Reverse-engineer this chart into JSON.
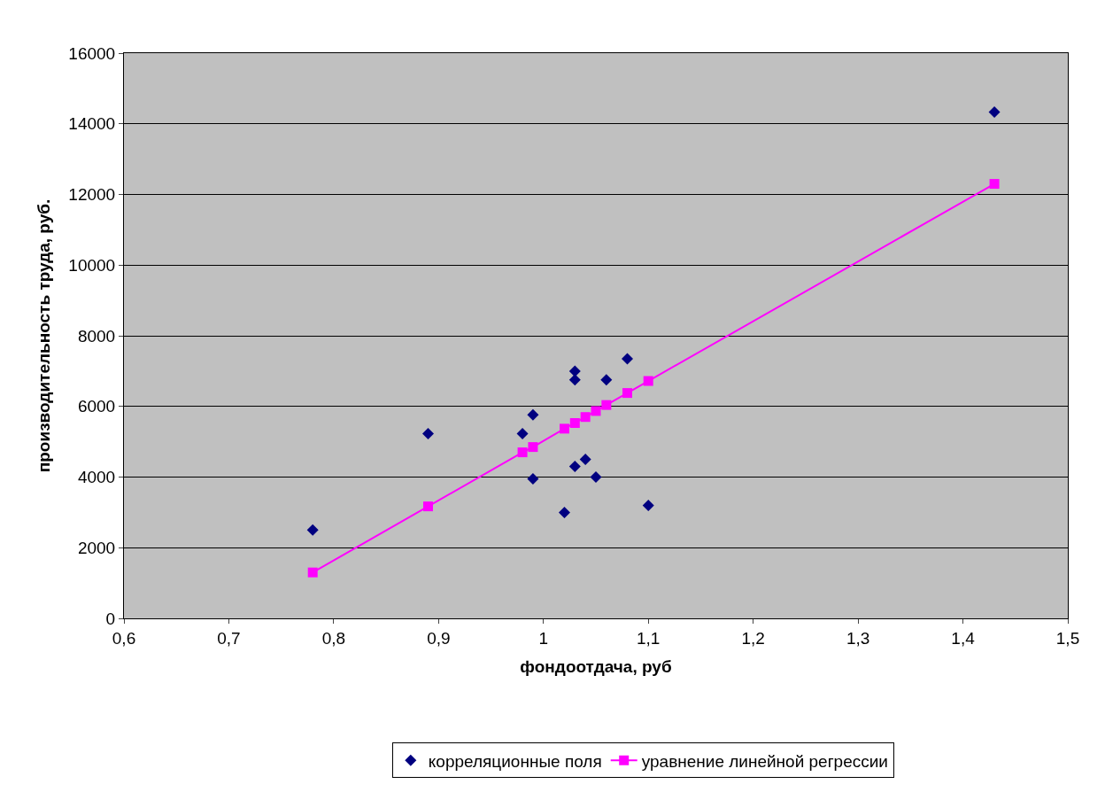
{
  "chart_data": {
    "type": "scatter",
    "xlabel": "фондоотдача, руб",
    "ylabel": "производительность труда, руб.",
    "x": [
      0.78,
      0.89,
      0.98,
      0.99,
      0.99,
      1.02,
      1.03,
      1.03,
      1.03,
      1.04,
      1.05,
      1.06,
      1.08,
      1.1,
      1.43
    ],
    "series": [
      {
        "name": "корреляционные поля",
        "type": "scatter",
        "marker": "diamond",
        "color": "#000080",
        "values": [
          2500,
          5230,
          5230,
          5760,
          3950,
          3000,
          7000,
          6750,
          4300,
          4500,
          4000,
          6750,
          7350,
          3200,
          14330
        ]
      },
      {
        "name": "уравнение линейной регрессии",
        "type": "line",
        "marker": "square",
        "line_style": "solid",
        "color": "#ff00ff",
        "x": [
          0.78,
          0.89,
          0.98,
          0.99,
          1.02,
          1.03,
          1.04,
          1.05,
          1.06,
          1.08,
          1.1,
          1.43
        ],
        "values": [
          1300,
          3170,
          4700,
          4850,
          5370,
          5530,
          5700,
          5870,
          6040,
          6380,
          6720,
          12300
        ]
      }
    ],
    "xlim": [
      0.6,
      1.5
    ],
    "xticks": [
      {
        "value": 0.6,
        "label": "0,6"
      },
      {
        "value": 0.7,
        "label": "0,7"
      },
      {
        "value": 0.8,
        "label": "0,8"
      },
      {
        "value": 0.9,
        "label": "0,9"
      },
      {
        "value": 1,
        "label": "1"
      },
      {
        "value": 1.1,
        "label": "1,1"
      },
      {
        "value": 1.2,
        "label": "1,2"
      },
      {
        "value": 1.3,
        "label": "1,3"
      },
      {
        "value": 1.4,
        "label": "1,4"
      },
      {
        "value": 1.5,
        "label": "1,5"
      }
    ],
    "ylim": [
      0,
      16000
    ],
    "yticks": [
      0,
      2000,
      4000,
      6000,
      8000,
      10000,
      12000,
      14000,
      16000
    ],
    "grid": "y",
    "legend": "bottom"
  }
}
